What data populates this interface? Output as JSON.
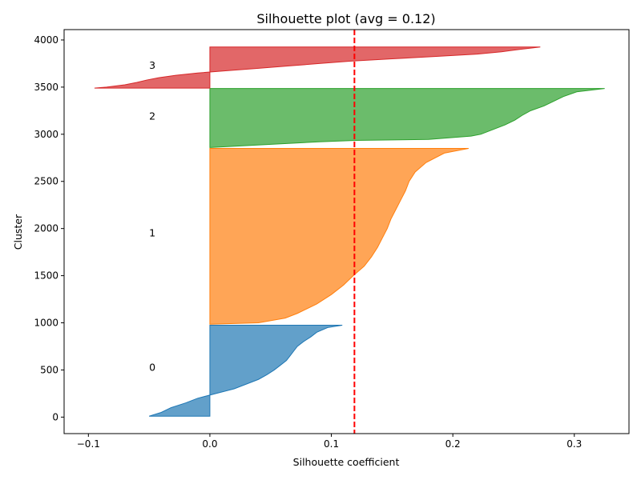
{
  "chart_data": {
    "type": "area",
    "title": "Silhouette plot (avg = 0.12)",
    "xlabel": "Silhouette coefficient",
    "ylabel": "Cluster",
    "xlim": [
      -0.12,
      0.345
    ],
    "ylim": [
      -175,
      4110
    ],
    "x_ticks": [
      -0.1,
      0.0,
      0.1,
      0.2,
      0.3
    ],
    "x_tick_labels": [
      "−0.1",
      "0.0",
      "0.1",
      "0.2",
      "0.3"
    ],
    "y_ticks": [
      0,
      500,
      1000,
      1500,
      2000,
      2500,
      3000,
      3500,
      4000
    ],
    "y_tick_labels": [
      "0",
      "500",
      "1000",
      "1500",
      "2000",
      "2500",
      "3000",
      "3500",
      "4000"
    ],
    "grid": false,
    "average_line": {
      "x": 0.119,
      "color": "#ff0000",
      "style": "dashed"
    },
    "clusters": [
      {
        "label": "0",
        "color": "#1f77b4",
        "label_pos": [
          -0.05,
          525
        ],
        "y_start": 10,
        "y_end": 975,
        "profile": [
          [
            10,
            -0.05
          ],
          [
            50,
            -0.04
          ],
          [
            100,
            -0.032
          ],
          [
            150,
            -0.02
          ],
          [
            200,
            -0.01
          ],
          [
            250,
            0.005
          ],
          [
            300,
            0.02
          ],
          [
            350,
            0.03
          ],
          [
            400,
            0.04
          ],
          [
            450,
            0.047
          ],
          [
            500,
            0.053
          ],
          [
            550,
            0.058
          ],
          [
            600,
            0.063
          ],
          [
            650,
            0.066
          ],
          [
            700,
            0.069
          ],
          [
            750,
            0.072
          ],
          [
            800,
            0.077
          ],
          [
            850,
            0.083
          ],
          [
            900,
            0.088
          ],
          [
            950,
            0.097
          ],
          [
            975,
            0.109
          ]
        ]
      },
      {
        "label": "1",
        "color": "#ff7f0e",
        "label_pos": [
          -0.05,
          1950
        ],
        "y_start": 985,
        "y_end": 2850,
        "profile": [
          [
            985,
            0.0
          ],
          [
            1000,
            0.04
          ],
          [
            1050,
            0.062
          ],
          [
            1100,
            0.072
          ],
          [
            1200,
            0.088
          ],
          [
            1300,
            0.1
          ],
          [
            1400,
            0.11
          ],
          [
            1500,
            0.118
          ],
          [
            1600,
            0.127
          ],
          [
            1700,
            0.133
          ],
          [
            1800,
            0.138
          ],
          [
            1900,
            0.142
          ],
          [
            2000,
            0.146
          ],
          [
            2100,
            0.149
          ],
          [
            2200,
            0.153
          ],
          [
            2300,
            0.157
          ],
          [
            2400,
            0.161
          ],
          [
            2500,
            0.164
          ],
          [
            2600,
            0.169
          ],
          [
            2700,
            0.178
          ],
          [
            2800,
            0.193
          ],
          [
            2850,
            0.213
          ]
        ]
      },
      {
        "label": "2",
        "color": "#2ca02c",
        "label_pos": [
          -0.05,
          3190
        ],
        "y_start": 2860,
        "y_end": 3485,
        "profile": [
          [
            2860,
            0.0
          ],
          [
            2880,
            0.03
          ],
          [
            2900,
            0.06
          ],
          [
            2920,
            0.09
          ],
          [
            2935,
            0.12
          ],
          [
            2945,
            0.18
          ],
          [
            2980,
            0.215
          ],
          [
            3000,
            0.223
          ],
          [
            3050,
            0.233
          ],
          [
            3100,
            0.243
          ],
          [
            3150,
            0.251
          ],
          [
            3200,
            0.257
          ],
          [
            3250,
            0.264
          ],
          [
            3300,
            0.275
          ],
          [
            3350,
            0.283
          ],
          [
            3400,
            0.291
          ],
          [
            3450,
            0.302
          ],
          [
            3485,
            0.325
          ]
        ]
      },
      {
        "label": "3",
        "color": "#d62728",
        "label_pos": [
          -0.05,
          3730
        ],
        "y_start": 3490,
        "y_end": 3925,
        "profile": [
          [
            3490,
            -0.095
          ],
          [
            3500,
            -0.085
          ],
          [
            3525,
            -0.07
          ],
          [
            3550,
            -0.06
          ],
          [
            3575,
            -0.052
          ],
          [
            3600,
            -0.042
          ],
          [
            3625,
            -0.028
          ],
          [
            3650,
            -0.01
          ],
          [
            3675,
            0.015
          ],
          [
            3700,
            0.04
          ],
          [
            3725,
            0.065
          ],
          [
            3750,
            0.09
          ],
          [
            3775,
            0.115
          ],
          [
            3800,
            0.15
          ],
          [
            3825,
            0.185
          ],
          [
            3850,
            0.22
          ],
          [
            3875,
            0.24
          ],
          [
            3900,
            0.255
          ],
          [
            3925,
            0.272
          ]
        ]
      }
    ]
  }
}
